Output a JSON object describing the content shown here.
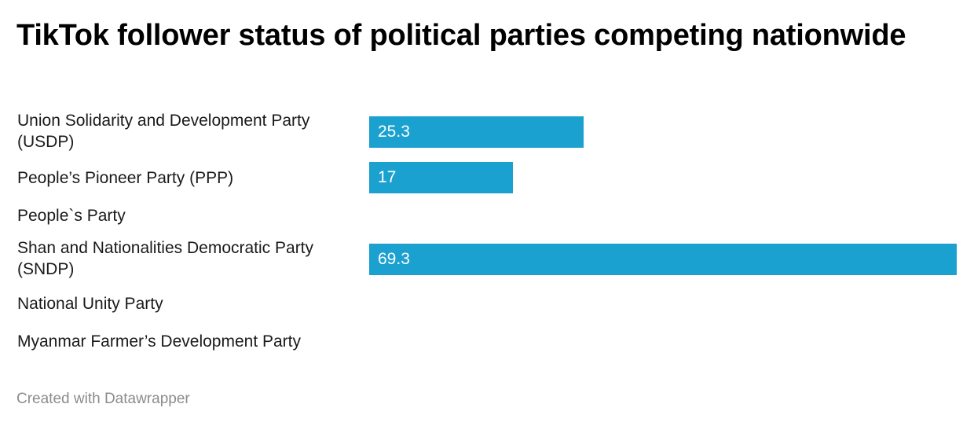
{
  "chart_data": {
    "type": "bar",
    "orientation": "horizontal",
    "title": "TikTok follower status of political parties competing nationwide",
    "categories": [
      "Union Solidarity and Development Party (USDP)",
      "People’s Pioneer Party (PPP)",
      "People`s Party",
      "Shan and Nationalities Democratic Party (SNDP)",
      "National Unity Party",
      "Myanmar Farmer’s Development Party"
    ],
    "values": [
      25.3,
      17,
      null,
      69.3,
      null,
      null
    ],
    "value_labels": [
      "25.3",
      "17",
      "",
      "69.3",
      "",
      ""
    ],
    "xlim": [
      0,
      69.3
    ],
    "bar_color": "#1ba1d0",
    "grid": false,
    "legend": "none"
  },
  "footer": {
    "credit": "Created with Datawrapper"
  }
}
